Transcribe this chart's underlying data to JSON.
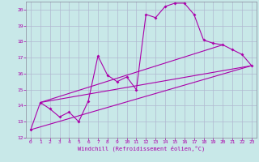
{
  "xlabel": "Windchill (Refroidissement éolien,°C)",
  "background_color": "#c8e8e8",
  "grid_color": "#b0b8d0",
  "line_color": "#aa00aa",
  "spine_color": "#888899",
  "xlim": [
    -0.5,
    23.5
  ],
  "ylim": [
    12,
    20.5
  ],
  "yticks": [
    12,
    13,
    14,
    15,
    16,
    17,
    18,
    19,
    20
  ],
  "xticks": [
    0,
    1,
    2,
    3,
    4,
    5,
    6,
    7,
    8,
    9,
    10,
    11,
    12,
    13,
    14,
    15,
    16,
    17,
    18,
    19,
    20,
    21,
    22,
    23
  ],
  "series": [
    [
      0,
      12.5
    ],
    [
      1,
      14.2
    ],
    [
      2,
      13.8
    ],
    [
      3,
      13.3
    ],
    [
      4,
      13.6
    ],
    [
      5,
      13.0
    ],
    [
      6,
      14.3
    ],
    [
      7,
      17.1
    ],
    [
      8,
      15.9
    ],
    [
      9,
      15.5
    ],
    [
      10,
      15.8
    ],
    [
      11,
      15.0
    ],
    [
      12,
      19.7
    ],
    [
      13,
      19.5
    ],
    [
      14,
      20.2
    ],
    [
      15,
      20.4
    ],
    [
      16,
      20.4
    ],
    [
      17,
      19.7
    ],
    [
      18,
      18.1
    ],
    [
      19,
      17.9
    ],
    [
      20,
      17.8
    ],
    [
      21,
      17.5
    ],
    [
      22,
      17.2
    ],
    [
      23,
      16.5
    ]
  ],
  "line2": [
    [
      0,
      12.5
    ],
    [
      23,
      16.5
    ]
  ],
  "line3": [
    [
      1,
      14.2
    ],
    [
      23,
      16.5
    ]
  ],
  "line4": [
    [
      1,
      14.2
    ],
    [
      20,
      17.8
    ]
  ]
}
